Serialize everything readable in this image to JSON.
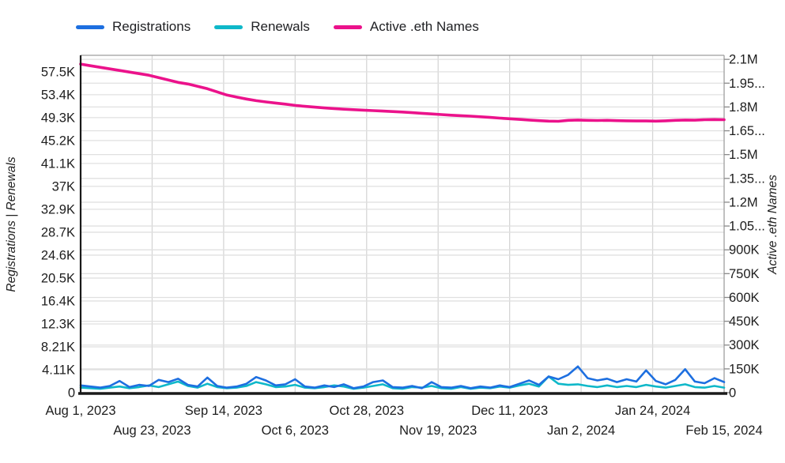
{
  "chart_data": {
    "type": "line",
    "title": "",
    "legend_position": "top",
    "grid": true,
    "x_unit": "days since Aug 1, 2023",
    "days": [
      0,
      3,
      6,
      9,
      12,
      15,
      18,
      21,
      24,
      27,
      30,
      33,
      36,
      39,
      42,
      45,
      48,
      51,
      54,
      57,
      60,
      63,
      66,
      69,
      72,
      75,
      78,
      81,
      84,
      87,
      90,
      93,
      96,
      99,
      102,
      105,
      108,
      111,
      114,
      117,
      120,
      123,
      126,
      129,
      132,
      135,
      138,
      141,
      144,
      147,
      150,
      153,
      156,
      159,
      162,
      165,
      168,
      171,
      174,
      177,
      180,
      183,
      186,
      189,
      192,
      195,
      198
    ],
    "series": [
      {
        "name": "Registrations",
        "axis": "left",
        "unit": "K",
        "color": "#1D6FE0",
        "values": [
          1.3,
          1.1,
          0.9,
          1.2,
          2.1,
          1.0,
          1.4,
          1.2,
          2.3,
          1.9,
          2.5,
          1.4,
          1.1,
          2.7,
          1.2,
          0.9,
          1.1,
          1.6,
          2.8,
          2.2,
          1.3,
          1.5,
          2.4,
          1.1,
          0.9,
          1.3,
          1.0,
          1.5,
          0.8,
          1.1,
          1.9,
          2.2,
          1.0,
          0.9,
          1.2,
          0.8,
          1.9,
          1.0,
          0.9,
          1.2,
          0.8,
          1.1,
          0.9,
          1.3,
          1.0,
          1.6,
          2.2,
          1.4,
          2.9,
          2.4,
          3.2,
          4.7,
          2.6,
          2.2,
          2.5,
          1.9,
          2.4,
          2.0,
          4.0,
          2.1,
          1.5,
          2.3,
          4.2,
          2.0,
          1.7,
          2.6,
          1.9
        ]
      },
      {
        "name": "Renewals",
        "axis": "left",
        "unit": "K",
        "color": "#0FB8C9",
        "values": [
          0.9,
          0.8,
          0.7,
          0.9,
          1.1,
          0.8,
          1.0,
          1.3,
          1.0,
          1.5,
          2.0,
          1.2,
          0.9,
          1.6,
          1.0,
          0.8,
          0.9,
          1.2,
          1.9,
          1.5,
          1.0,
          1.1,
          1.4,
          0.9,
          0.8,
          1.0,
          1.3,
          1.1,
          0.7,
          0.9,
          1.2,
          1.5,
          0.8,
          0.7,
          1.0,
          0.9,
          1.2,
          0.8,
          0.7,
          1.0,
          0.7,
          0.9,
          0.8,
          1.1,
          0.9,
          1.3,
          1.6,
          1.1,
          2.9,
          1.6,
          1.4,
          1.5,
          1.2,
          1.0,
          1.3,
          1.0,
          1.2,
          1.0,
          1.4,
          1.1,
          0.9,
          1.2,
          1.5,
          1.0,
          0.9,
          1.2,
          0.9
        ]
      },
      {
        "name": "Active .eth Names",
        "axis": "right",
        "unit": "M",
        "color": "#EB128B",
        "values": [
          2.07,
          2.06,
          2.05,
          2.04,
          2.03,
          2.02,
          2.01,
          2.0,
          1.985,
          1.97,
          1.955,
          1.945,
          1.93,
          1.915,
          1.895,
          1.875,
          1.862,
          1.85,
          1.84,
          1.832,
          1.825,
          1.818,
          1.81,
          1.804,
          1.799,
          1.794,
          1.79,
          1.786,
          1.783,
          1.78,
          1.777,
          1.774,
          1.771,
          1.768,
          1.764,
          1.76,
          1.756,
          1.752,
          1.748,
          1.745,
          1.742,
          1.738,
          1.734,
          1.73,
          1.726,
          1.722,
          1.718,
          1.714,
          1.711,
          1.71,
          1.716,
          1.718,
          1.716,
          1.715,
          1.716,
          1.714,
          1.713,
          1.712,
          1.712,
          1.711,
          1.713,
          1.716,
          1.718,
          1.717,
          1.72,
          1.721,
          1.72
        ]
      }
    ],
    "x_ticks": [
      {
        "day": 0,
        "label": "Aug 1, 2023",
        "row": 0
      },
      {
        "day": 22,
        "label": "Aug 23, 2023",
        "row": 1
      },
      {
        "day": 44,
        "label": "Sep 14, 2023",
        "row": 0
      },
      {
        "day": 66,
        "label": "Oct 6, 2023",
        "row": 1
      },
      {
        "day": 88,
        "label": "Oct 28, 2023",
        "row": 0
      },
      {
        "day": 110,
        "label": "Nov 19, 2023",
        "row": 1
      },
      {
        "day": 132,
        "label": "Dec 11, 2023",
        "row": 0
      },
      {
        "day": 154,
        "label": "Jan 2, 2024",
        "row": 1
      },
      {
        "day": 176,
        "label": "Jan 24, 2024",
        "row": 0
      },
      {
        "day": 198,
        "label": "Feb 15, 2024",
        "row": 1
      }
    ],
    "y_left": {
      "title": "Registrations | Renewals",
      "unit": "K",
      "axis_max_k": 60.45,
      "tick_step_k": 4.1071,
      "ticks": [
        "0",
        "4.11K",
        "8.21K",
        "12.3K",
        "16.4K",
        "20.5K",
        "24.6K",
        "28.7K",
        "32.9K",
        "37K",
        "41.1K",
        "45.2K",
        "49.3K",
        "53.4K",
        "57.5K"
      ]
    },
    "y_right": {
      "title": "Active .eth Names",
      "unit": "M",
      "axis_max_m": 2.1255,
      "tick_step_m": 0.15,
      "ticks": [
        "0",
        "150K",
        "300K",
        "450K",
        "600K",
        "750K",
        "900K",
        "1.05...",
        "1.2M",
        "1.35...",
        "1.5M",
        "1.65...",
        "1.8M",
        "1.95...",
        "2.1M"
      ]
    }
  },
  "colors": {
    "axis_line": "#1a1a1a",
    "grid_horizontal": "#e0e0e0",
    "grid_vertical": "#d6d6d6",
    "plot_border": "#9e9e9e",
    "tick_text": "#1d1d1d"
  }
}
